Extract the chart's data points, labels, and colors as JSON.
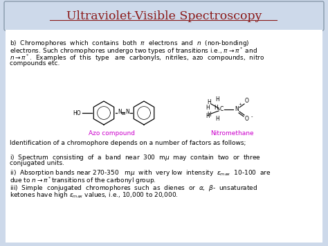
{
  "title": "Ultraviolet-Visible Spectroscopy",
  "title_color": "#8B1A1A",
  "bg_color": "#cdd9ea",
  "body_bg": "#ffffff",
  "label_color": "#cc00cc",
  "azo_label": "Azo compound",
  "nitro_label": "Nitromethane",
  "body_fontsize": 6.5,
  "title_fontsize": 12.5,
  "b_lines": [
    "b)  Chromophores  which  contains  both  $\\pi$  electrons  and  $n$  (non-bonding)",
    "electrons. Such chromophores undergo two types of transitions i.e., $\\pi \\rightarrow \\pi^*$ and",
    "$n \\rightarrow \\pi^*$.  Examples  of  this  type   are  carbonyls,  nitriles,  azo  compounds,  nitro",
    "compounds etc."
  ],
  "id_line": "Identification of a chromophore depends on a number of factors as follows;",
  "i_lines": [
    "i)  Spectrum  consisting  of  a  band  near  300  m$\\mu$  may  contain  two  or  three",
    "conjugated units."
  ],
  "ii_lines": [
    "ii)  Absorption bands near 270-350   m$\\mu$  with  very low  intensity  $\\varepsilon_{max}$  10-100  are",
    "due to $n \\rightarrow \\pi^*$transitions of the carbonyl group."
  ],
  "iii_lines": [
    "iii)  Simple  conjugated  chromophores  such  as  dienes  or  $\\alpha$,  $\\beta$-  unsaturated",
    "ketones have high $\\varepsilon_{max}$ values, i.e., 10,000 to 20,000."
  ]
}
